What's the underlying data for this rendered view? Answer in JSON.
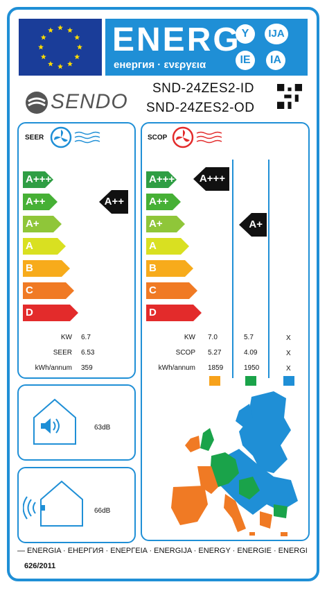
{
  "header": {
    "title": "ENERG",
    "subtitle": "енергия · ενεργεια",
    "lang_codes": [
      "Y",
      "IJA",
      "IE",
      "IA"
    ]
  },
  "brand": {
    "name": "SENDO"
  },
  "models": {
    "indoor": "SND-24ZES2-ID",
    "outdoor": "SND-24ZES2-OD"
  },
  "classes": [
    {
      "label": "A+++",
      "color": "#2f9e44"
    },
    {
      "label": "A++",
      "color": "#46b035"
    },
    {
      "label": "A+",
      "color": "#8fc639"
    },
    {
      "label": "A",
      "color": "#d9e021"
    },
    {
      "label": "B",
      "color": "#f7ab1b"
    },
    {
      "label": "C",
      "color": "#f07a24"
    },
    {
      "label": "D",
      "color": "#e32b2b"
    }
  ],
  "seer": {
    "title": "SEER",
    "rating": "A++",
    "labels": [
      "KW",
      "SEER",
      "kWh/annum"
    ],
    "values": [
      "6.7",
      "6.53",
      "359"
    ]
  },
  "scop": {
    "title": "SCOP",
    "rating_warmer": "A+++",
    "rating_average": "A+",
    "labels": [
      "KW",
      "SCOP",
      "kWh/annum"
    ],
    "col1": [
      "7.0",
      "5.27",
      "1859"
    ],
    "col2": [
      "5.7",
      "4.09",
      "1950"
    ],
    "col3": [
      "X",
      "X",
      "X"
    ],
    "swatch_colors": [
      "#f7a21b",
      "#1aa34a",
      "#1f8fd6"
    ]
  },
  "noise": {
    "indoor": "63dB",
    "outdoor": "66dB"
  },
  "footer": {
    "languages": "—  ENERGIA · ЕНЕРГИЯ · ΕΝΕΡΓΕΙΑ · ENERGIJA · ENERGY · ENERGIE · ENERGI",
    "regulation": "626/2011"
  },
  "colors": {
    "accent": "#1f8fd6",
    "eu_blue": "#1a3d99",
    "fan_red": "#e32b2b"
  }
}
